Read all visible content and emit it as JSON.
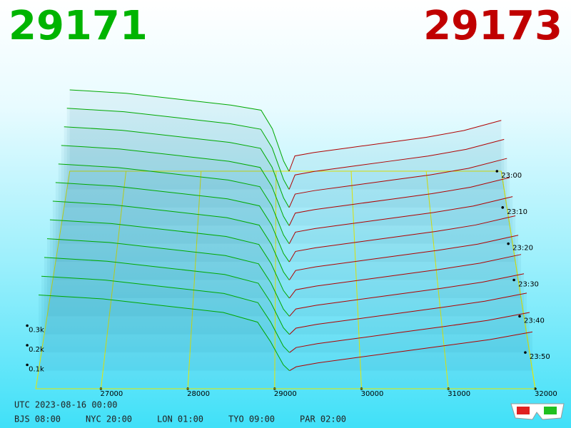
{
  "chart_data": {
    "type": "depth3d",
    "bid_price": 29171,
    "ask_price": 29173,
    "bid_color": "#00a800",
    "ask_color": "#b00000",
    "xlim": [
      26250,
      32000
    ],
    "xticks": [
      27000,
      28000,
      29000,
      30000,
      31000,
      32000
    ],
    "tlim": [
      0,
      60
    ],
    "tticks": [
      {
        "value": 0,
        "label": "23:00"
      },
      {
        "value": 10,
        "label": "23:10"
      },
      {
        "value": 20,
        "label": "23:20"
      },
      {
        "value": 30,
        "label": "23:30"
      },
      {
        "value": 40,
        "label": "23:40"
      },
      {
        "value": 50,
        "label": "23:50"
      }
    ],
    "zticks": [
      {
        "value": 100,
        "label": "0.1k"
      },
      {
        "value": 200,
        "label": "0.2k"
      },
      {
        "value": 300,
        "label": "0.3k"
      }
    ],
    "bid_prices": [
      26250,
      27000,
      27800,
      28400,
      28800,
      28950,
      29100,
      29171
    ],
    "ask_prices": [
      29173,
      29250,
      29500,
      30000,
      30500,
      31000,
      31500,
      32000
    ],
    "slices": [
      {
        "time": 0,
        "bids": [
          480,
          460,
          420,
          390,
          360,
          250,
          60,
          0
        ],
        "asks": [
          0,
          90,
          110,
          140,
          170,
          200,
          240,
          300
        ]
      },
      {
        "time": 5,
        "bids": [
          472,
          452,
          412,
          382,
          350,
          241,
          57,
          0
        ],
        "asks": [
          0,
          84,
          104,
          134,
          164,
          194,
          233,
          291
        ]
      },
      {
        "time": 10,
        "bids": [
          464,
          444,
          404,
          374,
          340,
          232,
          55,
          0
        ],
        "asks": [
          0,
          77,
          97,
          127,
          157,
          187,
          225,
          282
        ]
      },
      {
        "time": 15,
        "bids": [
          455,
          435,
          395,
          365,
          330,
          223,
          52,
          0
        ],
        "asks": [
          0,
          71,
          91,
          121,
          151,
          181,
          218,
          273
        ]
      },
      {
        "time": 20,
        "bids": [
          447,
          427,
          387,
          357,
          320,
          214,
          49,
          0
        ],
        "asks": [
          0,
          65,
          85,
          115,
          145,
          175,
          211,
          264
        ]
      },
      {
        "time": 25,
        "bids": [
          439,
          419,
          379,
          349,
          310,
          205,
          46,
          0
        ],
        "asks": [
          0,
          58,
          78,
          108,
          138,
          168,
          204,
          255
        ]
      },
      {
        "time": 30,
        "bids": [
          431,
          411,
          371,
          341,
          300,
          195,
          44,
          0
        ],
        "asks": [
          0,
          52,
          72,
          102,
          132,
          162,
          196,
          245
        ]
      },
      {
        "time": 35,
        "bids": [
          423,
          403,
          363,
          333,
          290,
          186,
          41,
          0
        ],
        "asks": [
          0,
          45,
          65,
          95,
          125,
          155,
          189,
          236
        ]
      },
      {
        "time": 40,
        "bids": [
          414,
          394,
          354,
          324,
          280,
          177,
          38,
          0
        ],
        "asks": [
          0,
          39,
          59,
          89,
          119,
          149,
          182,
          227
        ]
      },
      {
        "time": 45,
        "bids": [
          406,
          386,
          346,
          316,
          270,
          168,
          35,
          0
        ],
        "asks": [
          0,
          33,
          53,
          83,
          113,
          143,
          175,
          218
        ]
      },
      {
        "time": 50,
        "bids": [
          398,
          378,
          338,
          308,
          260,
          159,
          33,
          0
        ],
        "asks": [
          0,
          26,
          46,
          76,
          106,
          136,
          167,
          209
        ]
      },
      {
        "time": 55,
        "bids": [
          390,
          370,
          330,
          300,
          250,
          150,
          30,
          0
        ],
        "asks": [
          0,
          20,
          40,
          70,
          100,
          130,
          160,
          200
        ]
      }
    ],
    "footer": {
      "utc": "UTC 2023-08-16 00:00",
      "clocks": [
        "BJS 08:00",
        "NYC 20:00",
        "LON 01:00",
        "TYO 09:00",
        "PAR 02:00"
      ]
    }
  }
}
